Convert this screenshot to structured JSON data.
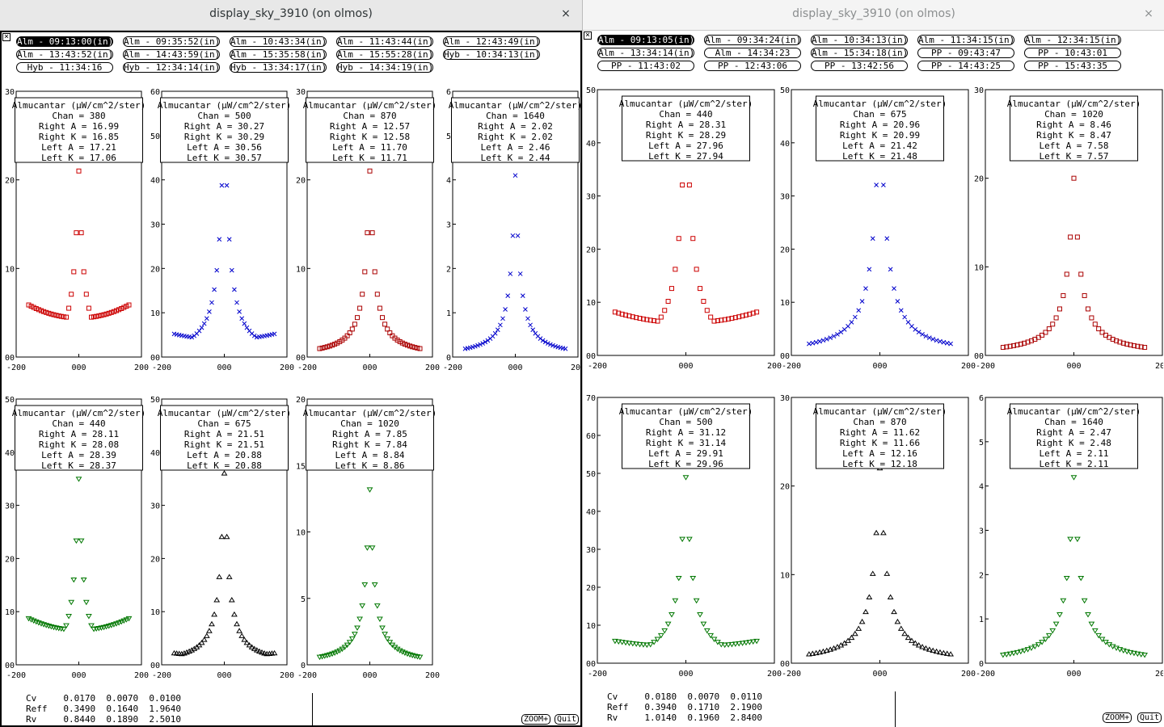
{
  "windows": [
    {
      "id": "left",
      "title": "display_sky_3910 (on olmos)",
      "close_glyph": "×",
      "corner_icon": "close-box-icon",
      "buttons": [
        {
          "label": "Alm - 09:13:00(in)",
          "active": true
        },
        {
          "label": "Alm - 09:35:52(in)",
          "active": false
        },
        {
          "label": "Alm - 10:43:34(in)",
          "active": false
        },
        {
          "label": "Alm - 11:43:44(in)",
          "active": false
        },
        {
          "label": "Alm - 12:43:49(in)",
          "active": false
        },
        {
          "label": "Alm - 13:43:52(in)",
          "active": false
        },
        {
          "label": "Alm - 14:43:59(in)",
          "active": false
        },
        {
          "label": "Alm - 15:35:58(in)",
          "active": false
        },
        {
          "label": "Alm - 15:55:28(in)",
          "active": false
        },
        {
          "label": "Hyb - 10:34:13(in)",
          "active": false
        },
        {
          "label": "Hyb - 11:34:16",
          "active": false
        },
        {
          "label": "Hyb - 12:34:14(in)",
          "active": false
        },
        {
          "label": "Hyb - 13:34:17(in)",
          "active": false
        },
        {
          "label": "Hyb - 14:34:19(in)",
          "active": false
        }
      ],
      "plots": [
        {
          "marker": "square",
          "color": "#cc0000",
          "ymax": 30,
          "yticks": [
            "00",
            "10",
            "20",
            "30"
          ],
          "legend": [
            "Almucantar (µW/cm^2/ster)",
            "Chan = 380",
            "Right A = 16.99",
            "Right K = 16.85",
            "Left A = 17.21",
            "Left K = 17.06"
          ]
        },
        {
          "marker": "x",
          "color": "#0000cc",
          "ymax": 60,
          "yticks": [
            "00",
            "10",
            "20",
            "30",
            "40",
            "50",
            "60"
          ],
          "legend": [
            "Almucantar (µW/cm^2/ster)",
            "Chan = 500",
            "Right A = 30.27",
            "Right K = 30.29",
            "Left A = 30.56",
            "Left K = 30.57"
          ]
        },
        {
          "marker": "square",
          "color": "#aa0000",
          "ymax": 30,
          "yticks": [
            "00",
            "10",
            "20",
            "30"
          ],
          "legend": [
            "Almucantar (µW/cm^2/ster)",
            "Chan = 870",
            "Right A = 12.57",
            "Right K = 12.58",
            "Left A = 11.70",
            "Left K = 11.71"
          ]
        },
        {
          "marker": "x",
          "color": "#0000cc",
          "ymax": 6,
          "yticks": [
            "0",
            "1",
            "2",
            "3",
            "4",
            "5",
            "6"
          ],
          "legend": [
            "Almucantar (µW/cm^2/ster)",
            "Chan = 1640",
            "Right A = 2.02",
            "Right K = 2.02",
            "Left A = 2.46",
            "Left K = 2.44"
          ]
        },
        {
          "marker": "tri-down",
          "color": "#007700",
          "ymax": 50,
          "yticks": [
            "00",
            "10",
            "20",
            "30",
            "40",
            "50"
          ],
          "legend": [
            "Almucantar (µW/cm^2/ster)",
            "Chan = 440",
            "Right A = 28.11",
            "Right K = 28.08",
            "Left A = 28.39",
            "Left K = 28.37"
          ]
        },
        {
          "marker": "tri-up",
          "color": "#000000",
          "ymax": 50,
          "yticks": [
            "00",
            "10",
            "20",
            "30",
            "40",
            "50"
          ],
          "legend": [
            "Almucantar (µW/cm^2/ster)",
            "Chan = 675",
            "Right A = 21.51",
            "Right K = 21.51",
            "Left A = 20.88",
            "Left K = 20.88"
          ]
        },
        {
          "marker": "tri-down",
          "color": "#007700",
          "ymax": 20,
          "yticks": [
            "0",
            "5",
            "10",
            "15",
            "20"
          ],
          "legend": [
            "Almucantar (µW/cm^2/ster)",
            "Chan = 1020",
            "Right A = 7.85",
            "Right K = 7.84",
            "Left A = 8.84",
            "Left K = 8.86"
          ]
        }
      ],
      "info_rows": [
        [
          "Cv",
          "0.0170",
          "0.0070",
          "0.0100"
        ],
        [
          "Reff",
          "0.3490",
          "0.1640",
          "1.9640"
        ],
        [
          "Rv",
          "0.8440",
          "0.1890",
          "2.5010"
        ]
      ],
      "zoom_label": "ZOOM+",
      "quit_label": "Quit"
    },
    {
      "id": "right",
      "title": "display_sky_3910 (on olmos)",
      "close_glyph": "×",
      "corner_icon": "close-box-icon",
      "buttons": [
        {
          "label": "Alm - 09:13:05(in)",
          "active": true
        },
        {
          "label": "Alm - 09:34:24(in)",
          "active": false
        },
        {
          "label": "Alm - 10:34:13(in)",
          "active": false
        },
        {
          "label": "Alm - 11:34:15(in)",
          "active": false
        },
        {
          "label": "Alm - 12:34:15(in)",
          "active": false
        },
        {
          "label": "Alm - 13:34:14(in)",
          "active": false
        },
        {
          "label": "Alm - 14:34:23",
          "active": false
        },
        {
          "label": "Alm - 15:34:18(in)",
          "active": false
        },
        {
          "label": "PP - 09:43:47",
          "active": false
        },
        {
          "label": "PP - 10:43:01",
          "active": false
        },
        {
          "label": "PP - 11:43:02",
          "active": false
        },
        {
          "label": "PP - 12:43:06",
          "active": false
        },
        {
          "label": "PP - 13:42:56",
          "active": false
        },
        {
          "label": "PP - 14:43:25",
          "active": false
        },
        {
          "label": "PP - 15:43:35",
          "active": false
        }
      ],
      "plots": [
        {
          "marker": "square",
          "color": "#cc0000",
          "ymax": 50,
          "yticks": [
            "00",
            "10",
            "20",
            "30",
            "40",
            "50"
          ],
          "legend": [
            "Almucantar (µW/cm^2/ster)",
            "Chan = 440",
            "Right A = 28.31",
            "Right K = 28.29",
            "Left A = 27.96",
            "Left K = 27.94"
          ]
        },
        {
          "marker": "x",
          "color": "#0000cc",
          "ymax": 50,
          "yticks": [
            "00",
            "10",
            "20",
            "30",
            "40",
            "50"
          ],
          "legend": [
            "Almucantar (µW/cm^2/ster)",
            "Chan = 675",
            "Right A = 20.96",
            "Right K = 20.99",
            "Left A = 21.42",
            "Left K = 21.48"
          ]
        },
        {
          "marker": "square",
          "color": "#aa0000",
          "ymax": 30,
          "yticks": [
            "00",
            "10",
            "20",
            "30"
          ],
          "legend": [
            "Almucantar (µW/cm^2/ster)",
            "Chan = 1020",
            "Right A = 8.46",
            "Right K = 8.47",
            "Left A = 7.58",
            "Left K = 7.57"
          ]
        },
        {
          "marker": "tri-down",
          "color": "#007700",
          "ymax": 70,
          "yticks": [
            "00",
            "10",
            "20",
            "30",
            "40",
            "50",
            "60",
            "70"
          ],
          "legend": [
            "Almucantar (µW/cm^2/ster)",
            "Chan = 500",
            "Right A = 31.12",
            "Right K = 31.14",
            "Left A = 29.91",
            "Left K = 29.96"
          ]
        },
        {
          "marker": "tri-up",
          "color": "#000000",
          "ymax": 30,
          "yticks": [
            "00",
            "10",
            "20",
            "30"
          ],
          "legend": [
            "Almucantar (µW/cm^2/ster)",
            "Chan = 870",
            "Right A = 11.62",
            "Right K = 11.66",
            "Left A = 12.16",
            "Left K = 12.18"
          ]
        },
        {
          "marker": "tri-down",
          "color": "#007700",
          "ymax": 6,
          "yticks": [
            "0",
            "1",
            "2",
            "3",
            "4",
            "5",
            "6"
          ],
          "legend": [
            "Almucantar (µW/cm^2/ster)",
            "Chan = 1640",
            "Right A = 2.47",
            "Right K = 2.48",
            "Left A = 2.11",
            "Left K = 2.11"
          ]
        }
      ],
      "info_rows": [
        [
          "Cv",
          "0.0180",
          "0.0070",
          "0.0110"
        ],
        [
          "Reff",
          "0.3940",
          "0.1710",
          "2.1900"
        ],
        [
          "Rv",
          "1.0140",
          "0.1960",
          "2.8400"
        ]
      ],
      "zoom_label": "ZOOM+",
      "quit_label": "Quit"
    }
  ],
  "x_axis": {
    "min": -200,
    "max": 200,
    "ticks": [
      "-200",
      "000",
      "200"
    ]
  }
}
